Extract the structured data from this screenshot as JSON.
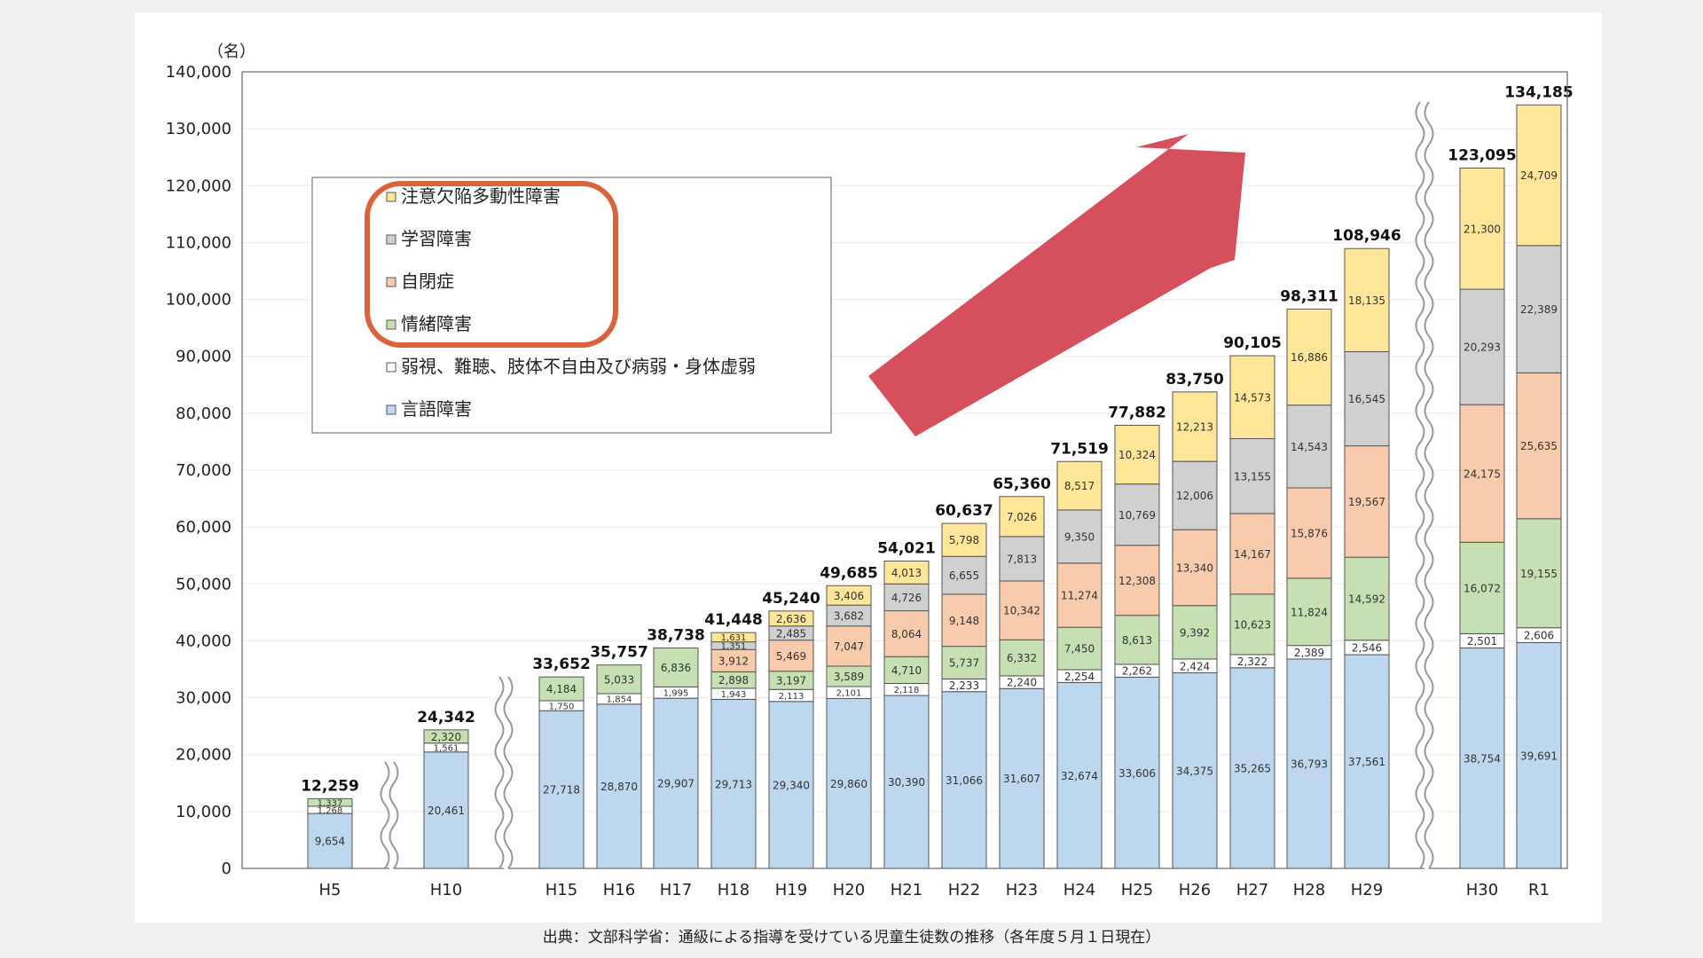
{
  "caption": "出典：文部科学省：通級による指導を受けている児童生徒数の推移（各年度５月１日現在）",
  "chart_data": {
    "type": "bar",
    "stacked": true,
    "ylabel": "（名）",
    "ylim": [
      0,
      140000
    ],
    "yticks": [
      0,
      10000,
      20000,
      30000,
      40000,
      50000,
      60000,
      70000,
      80000,
      90000,
      100000,
      110000,
      120000,
      130000,
      140000
    ],
    "ytick_labels": [
      "0",
      "10,000",
      "20,000",
      "30,000",
      "40,000",
      "50,000",
      "60,000",
      "70,000",
      "80,000",
      "90,000",
      "100,000",
      "110,000",
      "120,000",
      "130,000",
      "140,000"
    ],
    "grid": true,
    "legend_position": "top-left",
    "categories": [
      "H5",
      "H10",
      "H15",
      "H16",
      "H17",
      "H18",
      "H19",
      "H20",
      "H21",
      "H22",
      "H23",
      "H24",
      "H25",
      "H26",
      "H27",
      "H28",
      "H29",
      "H30",
      "R1"
    ],
    "series": [
      {
        "name": "言語障害",
        "color": "#bdd7ee",
        "values": [
          9654,
          20461,
          27718,
          28870,
          29907,
          29713,
          29340,
          29860,
          30390,
          31066,
          31607,
          32674,
          33606,
          34375,
          35265,
          36793,
          37561,
          38754,
          39691
        ],
        "labels": [
          "9,654",
          "20,461",
          "27,718",
          "28,870",
          "29,907",
          "29,713",
          "29,340",
          "29,860",
          "30,390",
          "31,066",
          "31,607",
          "32,674",
          "33,606",
          "34,375",
          "35,265",
          "36,793",
          "37,561",
          "38,754",
          "39,691"
        ]
      },
      {
        "name": "弱視、難聴、肢体不自由及び病弱・身体虚弱",
        "color": "#ffffff",
        "values": [
          1268,
          1561,
          1750,
          1854,
          1995,
          1943,
          2113,
          2101,
          2118,
          2233,
          2240,
          2254,
          2262,
          2424,
          2322,
          2389,
          2546,
          2501,
          2606
        ],
        "labels": [
          "1,268",
          "1,561",
          "1,750",
          "1,854",
          "1,995",
          "1,943",
          "2,113",
          "2,101",
          "2,118",
          "2,233",
          "2,240",
          "2,254",
          "2,262",
          "2,424",
          "2,322",
          "2,389",
          "2,546",
          "2,501",
          "2,606"
        ]
      },
      {
        "name": "情緒障害",
        "color": "#c6e0b4",
        "values": [
          1337,
          2320,
          4184,
          5033,
          6836,
          2898,
          3197,
          3589,
          4710,
          5737,
          6332,
          7450,
          8613,
          9392,
          10623,
          11824,
          14592,
          16072,
          19155
        ],
        "labels": [
          "1,337",
          "2,320",
          "4,184",
          "5,033",
          "6,836",
          "2,898",
          "3,197",
          "3,589",
          "4,710",
          "5,737",
          "6,332",
          "7,450",
          "8,613",
          "9,392",
          "10,623",
          "11,824",
          "14,592",
          "16,072",
          "19,155"
        ]
      },
      {
        "name": "自閉症",
        "color": "#f8cbad",
        "values": [
          0,
          0,
          0,
          0,
          0,
          3912,
          5469,
          7047,
          8064,
          9148,
          10342,
          11274,
          12308,
          13340,
          14167,
          15876,
          19567,
          24175,
          25635
        ],
        "labels": [
          "",
          "",
          "",
          "",
          "",
          "3,912",
          "5,469",
          "7,047",
          "8,064",
          "9,148",
          "10,342",
          "11,274",
          "12,308",
          "13,340",
          "14,167",
          "15,876",
          "19,567",
          "24,175",
          "25,635"
        ]
      },
      {
        "name": "学習障害",
        "color": "#d0d0d0",
        "values": [
          0,
          0,
          0,
          0,
          0,
          1351,
          2485,
          3682,
          4726,
          6655,
          7813,
          9350,
          10769,
          12006,
          13155,
          14543,
          16545,
          20293,
          22389
        ],
        "labels": [
          "",
          "",
          "",
          "",
          "",
          "1,351",
          "2,485",
          "3,682",
          "4,726",
          "6,655",
          "7,813",
          "9,350",
          "10,769",
          "12,006",
          "13,155",
          "14,543",
          "16,545",
          "20,293",
          "22,389"
        ]
      },
      {
        "name": "注意欠陥多動性障害",
        "color": "#ffe699",
        "values": [
          0,
          0,
          0,
          0,
          0,
          1631,
          2636,
          3406,
          4013,
          5798,
          7026,
          8517,
          10324,
          12213,
          14573,
          16886,
          18135,
          21300,
          24709
        ],
        "labels": [
          "",
          "",
          "",
          "",
          "",
          "1,631",
          "2,636",
          "3,406",
          "4,013",
          "5,798",
          "7,026",
          "8,517",
          "10,324",
          "12,213",
          "14,573",
          "16,886",
          "18,135",
          "21,300",
          "24,709"
        ]
      }
    ],
    "totals": [
      12259,
      24342,
      33652,
      35757,
      38738,
      41448,
      45240,
      49685,
      54021,
      60637,
      65360,
      71519,
      77882,
      83750,
      90105,
      98311,
      108946,
      123095,
      134185
    ],
    "total_labels": [
      "12,259",
      "24,342",
      "33,652",
      "35,757",
      "38,738",
      "41,448",
      "45,240",
      "49,685",
      "54,021",
      "60,637",
      "65,360",
      "71,519",
      "77,882",
      "83,750",
      "90,105",
      "98,311",
      "108,946",
      "123,095",
      "134,185"
    ],
    "axis_breaks": [
      "H5-H10",
      "H10-H15",
      "H29-H30"
    ],
    "annotations": {
      "legend_highlight": "rounded rectangle around the first four legend entries",
      "trend_arrow": "large red arrow pointing up-right",
      "highlight_color": "#d9643c",
      "arrow_color": "#d64f5c"
    }
  }
}
